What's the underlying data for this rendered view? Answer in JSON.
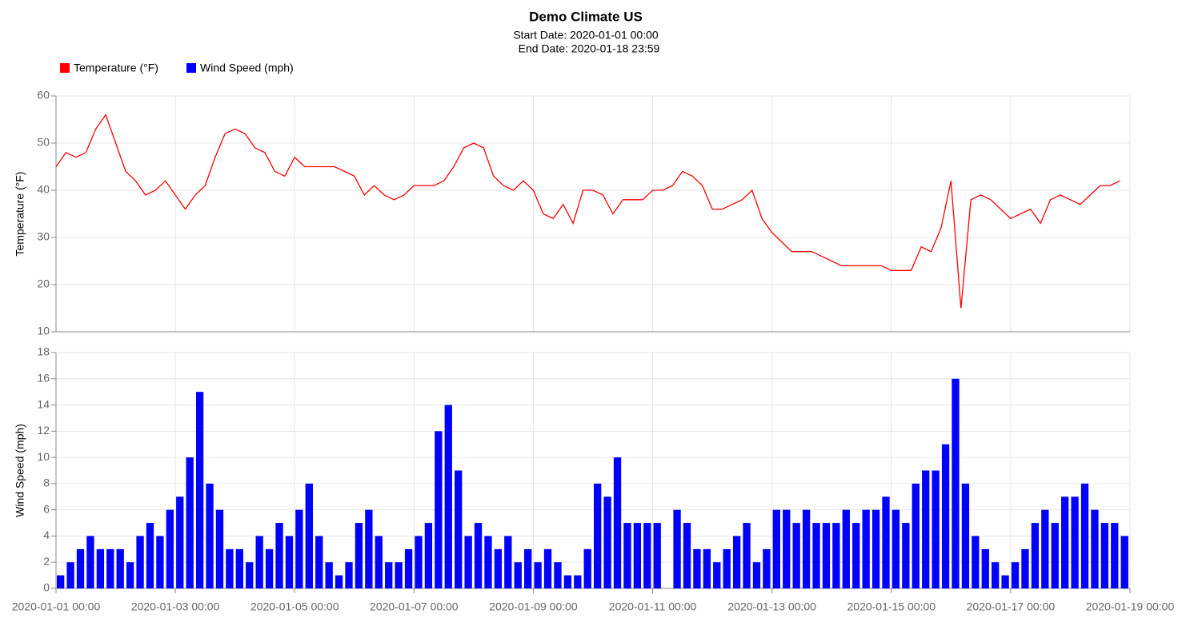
{
  "title": "Demo Climate US",
  "subtitle": [
    "Start Date: 2020-01-01 00:00",
    "End Date: 2020-01-18 23:59"
  ],
  "chart_data": [
    {
      "type": "line",
      "ylabel": "Temperature (°F)",
      "x": [
        "2020-01-01 00:00",
        "2020-01-01 04:00",
        "2020-01-01 08:00",
        "2020-01-01 12:00",
        "2020-01-01 16:00",
        "2020-01-01 20:00",
        "2020-01-02 00:00",
        "2020-01-02 04:00",
        "2020-01-02 08:00",
        "2020-01-02 12:00",
        "2020-01-02 16:00",
        "2020-01-02 20:00",
        "2020-01-03 00:00",
        "2020-01-03 04:00",
        "2020-01-03 08:00",
        "2020-01-03 12:00",
        "2020-01-03 16:00",
        "2020-01-03 20:00",
        "2020-01-04 00:00",
        "2020-01-04 04:00",
        "2020-01-04 08:00",
        "2020-01-04 12:00",
        "2020-01-04 16:00",
        "2020-01-04 20:00",
        "2020-01-05 00:00",
        "2020-01-05 04:00",
        "2020-01-05 08:00",
        "2020-01-05 12:00",
        "2020-01-05 16:00",
        "2020-01-05 20:00",
        "2020-01-06 00:00",
        "2020-01-06 04:00",
        "2020-01-06 08:00",
        "2020-01-06 12:00",
        "2020-01-06 16:00",
        "2020-01-06 20:00",
        "2020-01-07 00:00",
        "2020-01-07 04:00",
        "2020-01-07 08:00",
        "2020-01-07 12:00",
        "2020-01-07 16:00",
        "2020-01-07 20:00",
        "2020-01-08 00:00",
        "2020-01-08 04:00",
        "2020-01-08 08:00",
        "2020-01-08 12:00",
        "2020-01-08 16:00",
        "2020-01-08 20:00",
        "2020-01-09 00:00",
        "2020-01-09 04:00",
        "2020-01-09 08:00",
        "2020-01-09 12:00",
        "2020-01-09 16:00",
        "2020-01-09 20:00",
        "2020-01-10 00:00",
        "2020-01-10 04:00",
        "2020-01-10 08:00",
        "2020-01-10 12:00",
        "2020-01-10 16:00",
        "2020-01-10 20:00",
        "2020-01-11 00:00",
        "2020-01-11 04:00",
        "2020-01-11 08:00",
        "2020-01-11 12:00",
        "2020-01-11 16:00",
        "2020-01-11 20:00",
        "2020-01-12 00:00",
        "2020-01-12 04:00",
        "2020-01-12 08:00",
        "2020-01-12 12:00",
        "2020-01-12 16:00",
        "2020-01-12 20:00",
        "2020-01-13 00:00",
        "2020-01-13 04:00",
        "2020-01-13 08:00",
        "2020-01-13 12:00",
        "2020-01-13 16:00",
        "2020-01-13 20:00",
        "2020-01-14 00:00",
        "2020-01-14 04:00",
        "2020-01-14 08:00",
        "2020-01-14 12:00",
        "2020-01-14 16:00",
        "2020-01-14 20:00",
        "2020-01-15 00:00",
        "2020-01-15 04:00",
        "2020-01-15 08:00",
        "2020-01-15 12:00",
        "2020-01-15 16:00",
        "2020-01-15 20:00",
        "2020-01-16 00:00",
        "2020-01-16 04:00",
        "2020-01-16 08:00",
        "2020-01-16 12:00",
        "2020-01-16 16:00",
        "2020-01-16 20:00",
        "2020-01-17 00:00",
        "2020-01-17 04:00",
        "2020-01-17 08:00",
        "2020-01-17 12:00",
        "2020-01-17 16:00",
        "2020-01-17 20:00",
        "2020-01-18 00:00",
        "2020-01-18 04:00",
        "2020-01-18 08:00",
        "2020-01-18 12:00",
        "2020-01-18 16:00",
        "2020-01-18 20:00"
      ],
      "series": [
        {
          "name": "Temperature (°F)",
          "color": "#ff0000",
          "values": [
            45,
            48,
            47,
            48,
            53,
            56,
            50,
            44,
            42,
            39,
            40,
            42,
            39,
            36,
            39,
            41,
            47,
            52,
            53,
            52,
            49,
            48,
            44,
            43,
            47,
            45,
            45,
            45,
            45,
            44,
            43,
            39,
            41,
            39,
            38,
            39,
            41,
            41,
            41,
            42,
            45,
            49,
            50,
            49,
            43,
            41,
            40,
            42,
            40,
            35,
            34,
            37,
            33,
            40,
            40,
            39,
            35,
            38,
            38,
            38,
            40,
            40,
            41,
            44,
            43,
            41,
            36,
            36,
            37,
            38,
            40,
            34,
            31,
            29,
            27,
            27,
            27,
            26,
            25,
            24,
            24,
            24,
            24,
            24,
            23,
            23,
            23,
            28,
            27,
            32,
            42,
            15,
            38,
            39,
            38,
            36,
            34,
            35,
            36,
            33,
            38,
            39,
            38,
            37,
            39,
            41,
            41,
            42
          ]
        }
      ],
      "ylim": [
        10,
        60
      ],
      "yticks": [
        10,
        20,
        30,
        40,
        50,
        60
      ],
      "grid": true
    },
    {
      "type": "bar",
      "ylabel": "Wind Speed (mph)",
      "x": [
        "2020-01-01 00:00",
        "2020-01-01 04:00",
        "2020-01-01 08:00",
        "2020-01-01 12:00",
        "2020-01-01 16:00",
        "2020-01-01 20:00",
        "2020-01-02 00:00",
        "2020-01-02 04:00",
        "2020-01-02 08:00",
        "2020-01-02 12:00",
        "2020-01-02 16:00",
        "2020-01-02 20:00",
        "2020-01-03 00:00",
        "2020-01-03 04:00",
        "2020-01-03 08:00",
        "2020-01-03 12:00",
        "2020-01-03 16:00",
        "2020-01-03 20:00",
        "2020-01-04 00:00",
        "2020-01-04 04:00",
        "2020-01-04 08:00",
        "2020-01-04 12:00",
        "2020-01-04 16:00",
        "2020-01-04 20:00",
        "2020-01-05 00:00",
        "2020-01-05 04:00",
        "2020-01-05 08:00",
        "2020-01-05 12:00",
        "2020-01-05 16:00",
        "2020-01-05 20:00",
        "2020-01-06 00:00",
        "2020-01-06 04:00",
        "2020-01-06 08:00",
        "2020-01-06 12:00",
        "2020-01-06 16:00",
        "2020-01-06 20:00",
        "2020-01-07 00:00",
        "2020-01-07 04:00",
        "2020-01-07 08:00",
        "2020-01-07 12:00",
        "2020-01-07 16:00",
        "2020-01-07 20:00",
        "2020-01-08 00:00",
        "2020-01-08 04:00",
        "2020-01-08 08:00",
        "2020-01-08 12:00",
        "2020-01-08 16:00",
        "2020-01-08 20:00",
        "2020-01-09 00:00",
        "2020-01-09 04:00",
        "2020-01-09 08:00",
        "2020-01-09 12:00",
        "2020-01-09 16:00",
        "2020-01-09 20:00",
        "2020-01-10 00:00",
        "2020-01-10 04:00",
        "2020-01-10 08:00",
        "2020-01-10 12:00",
        "2020-01-10 16:00",
        "2020-01-10 20:00",
        "2020-01-11 00:00",
        "2020-01-11 04:00",
        "2020-01-11 08:00",
        "2020-01-11 12:00",
        "2020-01-11 16:00",
        "2020-01-11 20:00",
        "2020-01-12 00:00",
        "2020-01-12 04:00",
        "2020-01-12 08:00",
        "2020-01-12 12:00",
        "2020-01-12 16:00",
        "2020-01-12 20:00",
        "2020-01-13 00:00",
        "2020-01-13 04:00",
        "2020-01-13 08:00",
        "2020-01-13 12:00",
        "2020-01-13 16:00",
        "2020-01-13 20:00",
        "2020-01-14 00:00",
        "2020-01-14 04:00",
        "2020-01-14 08:00",
        "2020-01-14 12:00",
        "2020-01-14 16:00",
        "2020-01-14 20:00",
        "2020-01-15 00:00",
        "2020-01-15 04:00",
        "2020-01-15 08:00",
        "2020-01-15 12:00",
        "2020-01-15 16:00",
        "2020-01-15 20:00",
        "2020-01-16 00:00",
        "2020-01-16 04:00",
        "2020-01-16 08:00",
        "2020-01-16 12:00",
        "2020-01-16 16:00",
        "2020-01-16 20:00",
        "2020-01-17 00:00",
        "2020-01-17 04:00",
        "2020-01-17 08:00",
        "2020-01-17 12:00",
        "2020-01-17 16:00",
        "2020-01-17 20:00",
        "2020-01-18 00:00",
        "2020-01-18 04:00",
        "2020-01-18 08:00",
        "2020-01-18 12:00",
        "2020-01-18 16:00",
        "2020-01-18 20:00"
      ],
      "series": [
        {
          "name": "Wind Speed (mph)",
          "color": "#0000ff",
          "values": [
            1,
            2,
            3,
            4,
            3,
            3,
            3,
            2,
            4,
            5,
            4,
            6,
            7,
            10,
            15,
            8,
            6,
            3,
            3,
            2,
            4,
            3,
            5,
            4,
            6,
            8,
            4,
            2,
            1,
            2,
            5,
            6,
            4,
            2,
            2,
            3,
            4,
            5,
            12,
            14,
            9,
            4,
            5,
            4,
            3,
            4,
            2,
            3,
            2,
            3,
            2,
            1,
            1,
            3,
            8,
            7,
            10,
            5,
            5,
            5,
            5,
            0,
            6,
            5,
            3,
            3,
            2,
            3,
            4,
            5,
            2,
            3,
            6,
            6,
            5,
            6,
            5,
            5,
            5,
            6,
            5,
            6,
            6,
            7,
            6,
            5,
            8,
            9,
            9,
            11,
            16,
            8,
            4,
            3,
            2,
            1,
            2,
            3,
            5,
            6,
            5,
            7,
            7,
            8,
            6,
            5,
            5,
            4
          ]
        }
      ],
      "ylim": [
        0,
        18
      ],
      "yticks": [
        0,
        2,
        4,
        6,
        8,
        10,
        12,
        14,
        16,
        18
      ],
      "grid": true,
      "xlim": [
        "2020-01-01 00:00",
        "2020-01-19 00:00"
      ],
      "xticks": [
        "2020-01-01 00:00",
        "2020-01-03 00:00",
        "2020-01-05 00:00",
        "2020-01-07 00:00",
        "2020-01-09 00:00",
        "2020-01-11 00:00",
        "2020-01-13 00:00",
        "2020-01-15 00:00",
        "2020-01-17 00:00",
        "2020-01-19 00:00"
      ]
    }
  ]
}
